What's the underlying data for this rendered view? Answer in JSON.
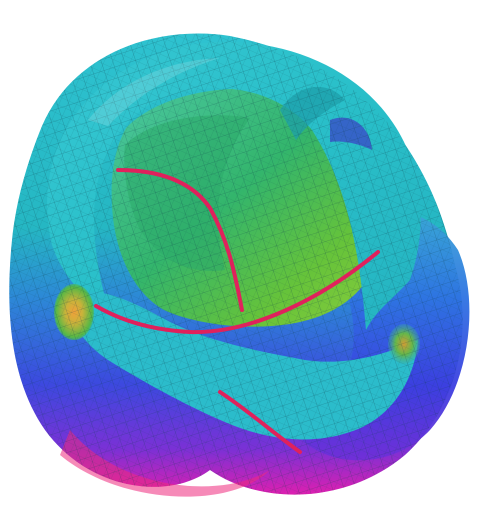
{
  "scene": {
    "subject": "surface-render",
    "colors": {
      "background": "#ffffff",
      "cyan": "#2cc6cf",
      "teal": "#22b3b7",
      "green": "#36b56b",
      "lime": "#6fc43d",
      "blue": "#2f5fe0",
      "violet": "#6a38d8",
      "magenta": "#d21cb9",
      "pink": "#ef2a7d",
      "curve": "#e0215c",
      "mesh": "#0f3d4a"
    }
  }
}
